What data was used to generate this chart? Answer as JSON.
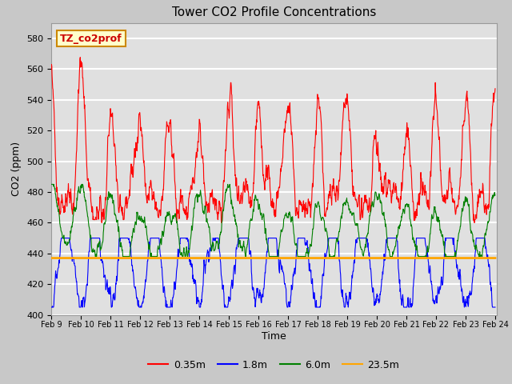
{
  "title": "Tower CO2 Profile Concentrations",
  "xlabel": "Time",
  "ylabel": "CO2 (ppm)",
  "ylim": [
    400,
    590
  ],
  "yticks": [
    400,
    420,
    440,
    460,
    480,
    500,
    520,
    540,
    560,
    580
  ],
  "annotation_text": "TZ_co2prof",
  "legend_labels": [
    "0.35m",
    "1.8m",
    "6.0m",
    "23.5m"
  ],
  "line_colors": [
    "red",
    "blue",
    "green",
    "orange"
  ],
  "flat_line_value": 437,
  "n_points": 1500,
  "x_start_day": 9,
  "x_end_day": 24,
  "xtick_days": [
    9,
    10,
    11,
    12,
    13,
    14,
    15,
    16,
    17,
    18,
    19,
    20,
    21,
    22,
    23,
    24
  ],
  "xtick_labels": [
    "Feb 9",
    "Feb 10",
    "Feb 11",
    "Feb 12",
    "Feb 13",
    "Feb 14",
    "Feb 15",
    "Feb 16",
    "Feb 17",
    "Feb 18",
    "Feb 19",
    "Feb 20",
    "Feb 21",
    "Feb 22",
    "Feb 23",
    "Feb 24"
  ]
}
